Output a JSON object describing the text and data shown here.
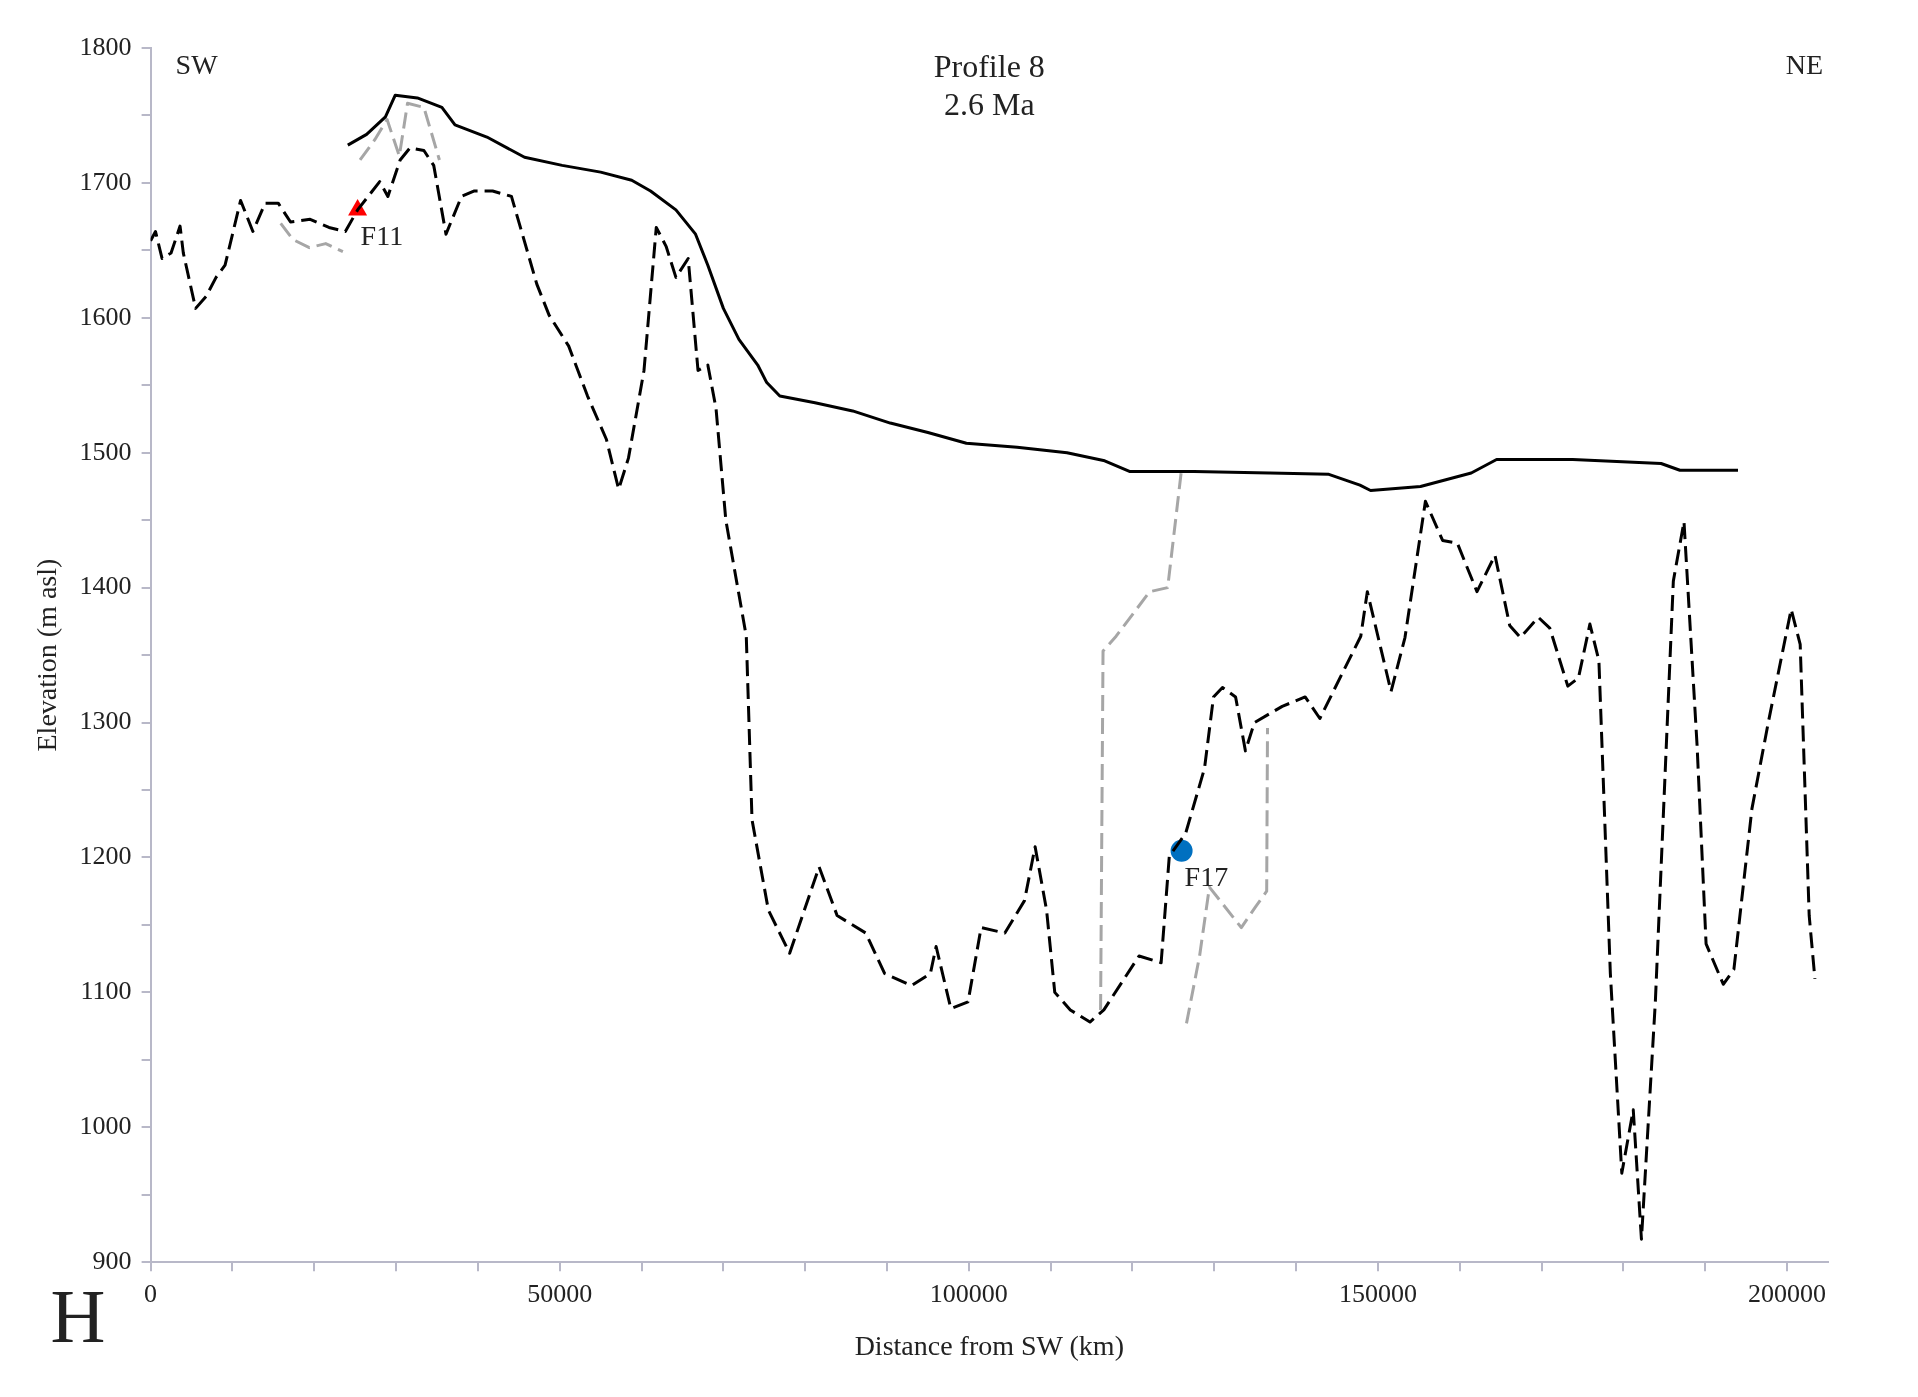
{
  "chart_data": {
    "type": "line",
    "title": "Profile 8",
    "subtitle": "2.6 Ma",
    "xlabel": "Distance from SW (km)",
    "ylabel": "Elevation (m asl)",
    "xlim": [
      0,
      205000
    ],
    "ylim": [
      900,
      1800
    ],
    "xticks": [
      {
        "value": 0,
        "label": "0"
      },
      {
        "value": 10000,
        "label": null
      },
      {
        "value": 20000,
        "label": null
      },
      {
        "value": 30000,
        "label": null
      },
      {
        "value": 40000,
        "label": null
      },
      {
        "value": 50000,
        "label": "50000"
      },
      {
        "value": 60000,
        "label": null
      },
      {
        "value": 70000,
        "label": null
      },
      {
        "value": 80000,
        "label": null
      },
      {
        "value": 90000,
        "label": null
      },
      {
        "value": 100000,
        "label": "100000"
      },
      {
        "value": 110000,
        "label": null
      },
      {
        "value": 120000,
        "label": null
      },
      {
        "value": 130000,
        "label": null
      },
      {
        "value": 140000,
        "label": null
      },
      {
        "value": 150000,
        "label": "150000"
      },
      {
        "value": 160000,
        "label": null
      },
      {
        "value": 170000,
        "label": null
      },
      {
        "value": 180000,
        "label": null
      },
      {
        "value": 190000,
        "label": null
      },
      {
        "value": 200000,
        "label": "200000"
      }
    ],
    "yticks": [
      900,
      {
        "value": 950,
        "label": null
      },
      1000,
      {
        "value": 1050,
        "label": null
      },
      1100,
      {
        "value": 1150,
        "label": null
      },
      1200,
      {
        "value": 1250,
        "label": null
      },
      1300,
      {
        "value": 1350,
        "label": null
      },
      1400,
      {
        "value": 1450,
        "label": null
      },
      1500,
      {
        "value": 1550,
        "label": null
      },
      1600,
      {
        "value": 1650,
        "label": null
      },
      1700,
      {
        "value": 1750,
        "label": null
      },
      1800
    ],
    "grid": false,
    "series": [
      {
        "type": "line",
        "color": "#000000",
        "line_style": "solid",
        "marker": "none",
        "x": [
          24100,
          26400,
          28700,
          29900,
          32600,
          35600,
          37200,
          41100,
          45700,
          50300,
          55000,
          58800,
          61100,
          64200,
          66600,
          68100,
          70000,
          71900,
          74200,
          75300,
          76900,
          81200,
          85800,
          90400,
          95000,
          99700,
          105900,
          112000,
          116600,
          119700,
          127500,
          136700,
          144000,
          147800,
          149100,
          155200,
          158300,
          161400,
          164500,
          166000,
          173800,
          184600,
          186900,
          194000
        ],
        "values": [
          1728,
          1736,
          1749,
          1765,
          1763,
          1756,
          1743,
          1734,
          1719,
          1713,
          1708,
          1702,
          1694,
          1680,
          1662,
          1639,
          1607,
          1584,
          1565,
          1552,
          1542,
          1537,
          1531,
          1522,
          1515,
          1507,
          1504,
          1500,
          1494,
          1486,
          1486,
          1485,
          1484,
          1476,
          1472,
          1475,
          1480,
          1485,
          1495,
          1495,
          1495,
          1492,
          1487,
          1487
        ]
      },
      {
        "type": "line",
        "color": "#a6a6a6",
        "line_style": "dashed",
        "marker": "none",
        "x": [
          15900,
          17400,
          19400,
          21400,
          23500,
          24500,
          25600,
          27400,
          28900,
          30400,
          31400,
          33400,
          35300,
          35800,
          116100,
          116400,
          118000,
          122100,
          124300,
          126000,
          126300,
          126600,
          128200,
          129400,
          133300,
          135100,
          136400,
          136500
        ],
        "values": [
          1670,
          1658,
          1652,
          1655,
          1649,
          null,
          1717,
          1732,
          1747,
          1720,
          1759,
          1756,
          1717,
          null,
          1087,
          1353,
          1364,
          1397,
          1400,
          1488,
          null,
          1077,
          1127,
          1178,
          1148,
          1164,
          1175,
          1296
        ]
      },
      {
        "type": "line",
        "color": "#000000",
        "line_style": "dashed",
        "marker": "none",
        "x": [
          0,
          600,
          1400,
          2500,
          3600,
          4000,
          5500,
          6800,
          8000,
          9100,
          11000,
          12500,
          14000,
          15600,
          17100,
          19500,
          21800,
          23800,
          25300,
          28000,
          29000,
          30500,
          31700,
          33400,
          34600,
          36100,
          38000,
          39500,
          41800,
          44100,
          47200,
          48700,
          51100,
          53400,
          55700,
          57200,
          58400,
          60300,
          61800,
          63000,
          64200,
          65700,
          66900,
          68100,
          69100,
          70300,
          72800,
          73500,
          75500,
          78100,
          81700,
          83900,
          87400,
          89700,
          93000,
          95300,
          96000,
          97800,
          99900,
          101500,
          104400,
          106800,
          108100,
          109500,
          110500,
          112400,
          114800,
          116500,
          120800,
          123500,
          124500,
          126500,
          128800,
          129900,
          131000,
          132600,
          133800,
          134900,
          138300,
          141100,
          142900,
          145600,
          147900,
          148700,
          151600,
          153300,
          155800,
          157900,
          159700,
          162100,
          164300,
          166100,
          167400,
          169600,
          171000,
          173200,
          174500,
          175900,
          177000,
          178400,
          179800,
          181200,
          182200,
          183900,
          186100,
          187400,
          189000,
          190100,
          192200,
          193500,
          195700,
          197700,
          200500,
          201600,
          202700,
          203400
        ],
        "values": [
          1657,
          1664,
          1644,
          1648,
          1668,
          1648,
          1607,
          1616,
          1630,
          1639,
          1687,
          1664,
          1685,
          1685,
          1671,
          1673,
          1667,
          1664,
          1680,
          1701,
          1690,
          1717,
          1726,
          1724,
          1713,
          1662,
          1690,
          1694,
          1694,
          1690,
          1625,
          1602,
          1579,
          1542,
          1510,
          1473,
          1496,
          1561,
          1667,
          1653,
          1630,
          1644,
          1561,
          1565,
          1533,
          1450,
          1364,
          1228,
          1161,
          1129,
          1193,
          1157,
          1144,
          1114,
          1105,
          1114,
          1134,
          1088,
          1093,
          1148,
          1144,
          1168,
          1208,
          1161,
          1100,
          1087,
          1078,
          1087,
          1127,
          1122,
          1201,
          1218,
          1266,
          1319,
          1326,
          1319,
          1279,
          1300,
          1312,
          1319,
          1303,
          1336,
          1364,
          1397,
          1323,
          1363,
          1464,
          1435,
          1433,
          1397,
          1424,
          1372,
          1363,
          1378,
          1370,
          1327,
          1333,
          1373,
          1346,
          1114,
          966,
          1013,
          917,
          1093,
          1405,
          1449,
          1283,
          1136,
          1106,
          1117,
          1236,
          1300,
          1384,
          1358,
          1157,
          1110
        ]
      },
      {
        "type": "scatter",
        "color": "#ff0000",
        "marker": "triangle",
        "x": [
          25300
        ],
        "values": [
          1680
        ]
      },
      {
        "type": "scatter",
        "color": "#0070c0",
        "marker": "circle",
        "x": [
          126000
        ],
        "values": [
          1205
        ]
      }
    ],
    "annotations": [
      "SW",
      "NE",
      "H",
      {
        "text": "F11",
        "x": 25300,
        "y": 1680
      },
      {
        "text": "F17",
        "x": 126000,
        "y": 1205
      }
    ]
  }
}
